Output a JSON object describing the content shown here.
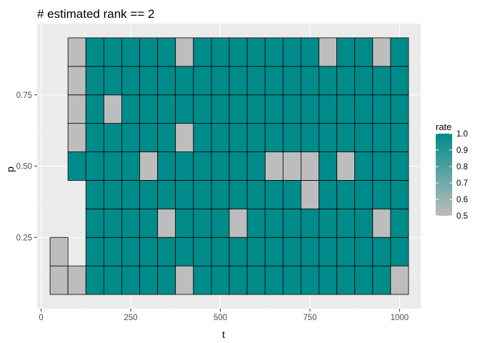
{
  "chart_data": {
    "type": "heatmap",
    "title": "# estimated rank == 2",
    "xlabel": "t",
    "ylabel": "p",
    "x_ticks": [
      {
        "value": 0,
        "label": "0"
      },
      {
        "value": 250,
        "label": "250"
      },
      {
        "value": 500,
        "label": "500"
      },
      {
        "value": 750,
        "label": "750"
      },
      {
        "value": 1000,
        "label": "1000"
      }
    ],
    "y_ticks": [
      {
        "value": 0.25,
        "label": "0.25"
      },
      {
        "value": 0.5,
        "label": "0.50"
      },
      {
        "value": 0.75,
        "label": "0.75"
      }
    ],
    "xlim": [
      -11,
      1059
    ],
    "ylim": [
      0.0,
      1.0
    ],
    "x": [
      50,
      100,
      150,
      200,
      250,
      300,
      350,
      400,
      450,
      500,
      550,
      600,
      650,
      700,
      750,
      800,
      850,
      900,
      950,
      1000
    ],
    "y": [
      0.1,
      0.2,
      0.3,
      0.4,
      0.5,
      0.6,
      0.7,
      0.8,
      0.9
    ],
    "cell_width": 50,
    "cell_height": 0.1,
    "rate": [
      [
        0.5,
        0.5,
        1,
        1,
        1,
        1,
        1,
        0.5,
        1,
        1,
        1,
        1,
        1,
        1,
        1,
        1,
        1,
        1,
        1,
        0.5
      ],
      [
        0.5,
        null,
        1,
        1,
        1,
        1,
        1,
        1,
        1,
        1,
        1,
        1,
        1,
        1,
        1,
        1,
        1,
        1,
        1,
        1
      ],
      [
        null,
        null,
        1,
        1,
        1,
        1,
        0.5,
        1,
        1,
        1,
        0.5,
        1,
        1,
        1,
        1,
        1,
        1,
        1,
        0.5,
        1
      ],
      [
        null,
        null,
        1,
        1,
        1,
        1,
        1,
        1,
        1,
        1,
        1,
        1,
        1,
        1,
        0.5,
        1,
        1,
        1,
        1,
        1
      ],
      [
        null,
        1,
        1,
        1,
        1,
        0.5,
        1,
        1,
        1,
        1,
        1,
        1,
        0.5,
        0.5,
        0.5,
        1,
        0.5,
        1,
        1,
        1
      ],
      [
        null,
        0.5,
        1,
        1,
        1,
        1,
        1,
        0.5,
        1,
        1,
        1,
        1,
        1,
        1,
        1,
        1,
        1,
        1,
        1,
        1
      ],
      [
        null,
        0.5,
        1,
        0.5,
        1,
        1,
        1,
        1,
        1,
        1,
        1,
        1,
        1,
        1,
        1,
        1,
        1,
        1,
        1,
        1
      ],
      [
        null,
        0.5,
        1,
        1,
        1,
        1,
        1,
        1,
        1,
        1,
        1,
        1,
        1,
        1,
        1,
        1,
        1,
        1,
        1,
        1
      ],
      [
        null,
        0.5,
        1,
        1,
        1,
        1,
        1,
        0.5,
        1,
        1,
        1,
        1,
        1,
        1,
        1,
        0.5,
        1,
        1,
        0.5,
        1
      ]
    ],
    "legend": {
      "title": "rate",
      "placement": "right",
      "range": [
        0.5,
        1.0
      ],
      "labels": [
        "1.0",
        "0.9",
        "0.8",
        "0.7",
        "0.6",
        "0.5"
      ],
      "values": [
        1.0,
        0.9,
        0.8,
        0.7,
        0.6,
        0.5
      ]
    },
    "colors": {
      "low": "#bdbdbd",
      "high": "#008b8b",
      "panel": "#ebebeb",
      "grid_major": "#ffffff",
      "grid_minor": "#f5f5f5",
      "cell_border": "#000000"
    },
    "grid": true
  }
}
